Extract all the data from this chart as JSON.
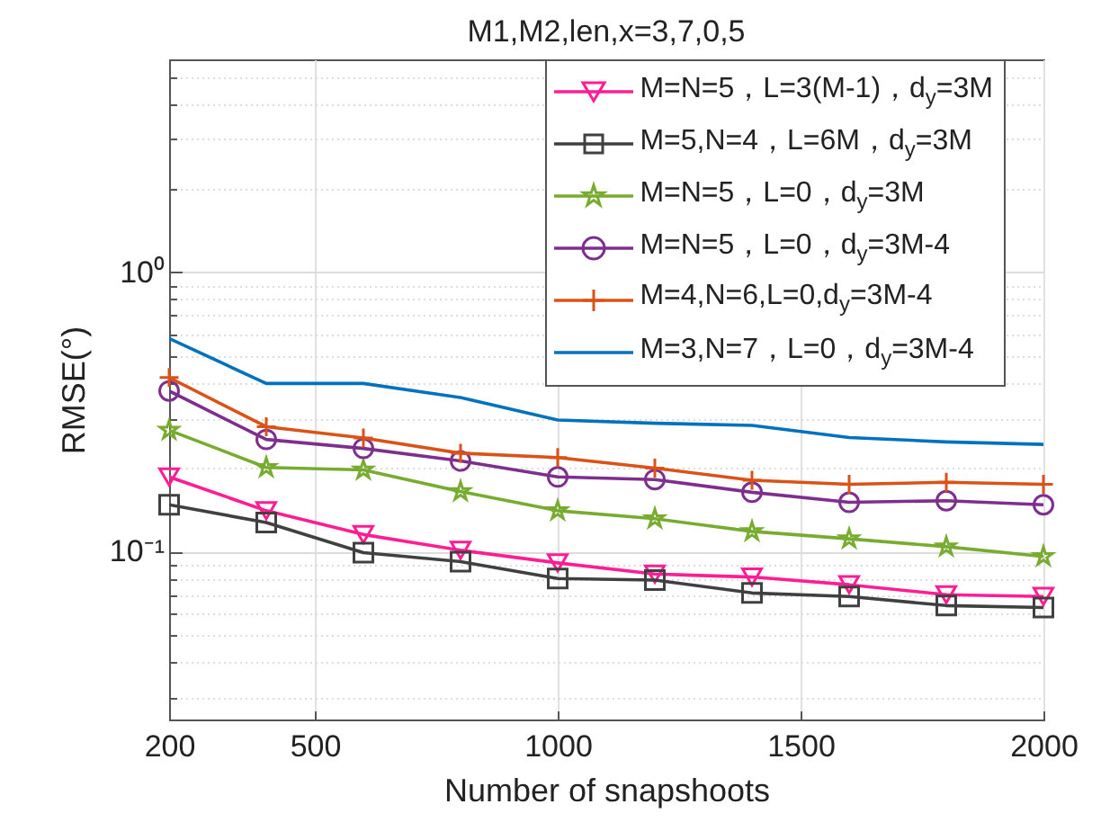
{
  "chart_data": {
    "type": "line",
    "title": "M1,M2,len,x=3,7,0,5",
    "xlabel": "Number of snapshoots",
    "ylabel": "RMSE(°)",
    "x": [
      200,
      400,
      600,
      800,
      1000,
      1200,
      1400,
      1600,
      1800,
      2000
    ],
    "series": [
      {
        "name": "M=N=5，L=3(M-1)，d$_{y}$=3M",
        "color": "#ff1d94",
        "marker": "triangle",
        "values": [
          0.185,
          0.14,
          0.115,
          0.101,
          0.091,
          0.083,
          0.081,
          0.076,
          0.07,
          0.069
        ]
      },
      {
        "name": "M=5,N=4，L=6M，d$_{y}$=3M",
        "color": "#404040",
        "marker": "square",
        "values": [
          0.147,
          0.127,
          0.099,
          0.092,
          0.08,
          0.079,
          0.071,
          0.069,
          0.064,
          0.063
        ]
      },
      {
        "name": "M=N=5，L=0，d$_{y}$=3M",
        "color": "#77ac30",
        "marker": "star",
        "values": [
          0.272,
          0.2,
          0.196,
          0.164,
          0.14,
          0.131,
          0.118,
          0.111,
          0.104,
          0.096
        ]
      },
      {
        "name": "M=N=5，L=0，d$_{y}$=3M-4",
        "color": "#7e2f8e",
        "marker": "circle",
        "values": [
          0.376,
          0.252,
          0.234,
          0.211,
          0.185,
          0.181,
          0.163,
          0.15,
          0.152,
          0.147
        ]
      },
      {
        "name": "M=4,N=6,L=0,d$_{y}$=3M-4",
        "color": "#d95319",
        "marker": "cross",
        "values": [
          0.42,
          0.28,
          0.255,
          0.225,
          0.217,
          0.199,
          0.18,
          0.174,
          0.177,
          0.174
        ]
      },
      {
        "name": "M=3,N=7，L=0，d$_{y}$=3M-4",
        "color": "#0072bd",
        "marker": "none",
        "values": [
          0.58,
          0.4,
          0.4,
          0.356,
          0.296,
          0.288,
          0.283,
          0.256,
          0.247,
          0.242
        ]
      }
    ],
    "log": "y",
    "xlim": [
      200,
      2000
    ],
    "ylim": [
      0.025,
      5.8
    ],
    "xticks": [
      200,
      500,
      1000,
      1500,
      2000
    ],
    "yticks": [
      {
        "value": 0.03,
        "label": null
      },
      {
        "value": 0.04,
        "label": null
      },
      {
        "value": 0.05,
        "label": null
      },
      {
        "value": 0.06,
        "label": null
      },
      {
        "value": 0.07,
        "label": null
      },
      {
        "value": 0.08,
        "label": null
      },
      {
        "value": 0.09,
        "label": null
      },
      {
        "value": 0.1,
        "label": "10⁻¹"
      },
      {
        "value": 0.2,
        "label": null
      },
      {
        "value": 0.3,
        "label": null
      },
      {
        "value": 0.4,
        "label": null
      },
      {
        "value": 0.5,
        "label": null
      },
      {
        "value": 0.6,
        "label": null
      },
      {
        "value": 0.7,
        "label": null
      },
      {
        "value": 0.8,
        "label": null
      },
      {
        "value": 0.9,
        "label": null
      },
      {
        "value": 1,
        "label": "10⁰"
      },
      {
        "value": 2,
        "label": null
      },
      {
        "value": 3,
        "label": null
      },
      {
        "value": 4,
        "label": null
      },
      {
        "value": 5,
        "label": null
      }
    ],
    "grid": true,
    "legend": "top right",
    "line_style": "solid"
  }
}
